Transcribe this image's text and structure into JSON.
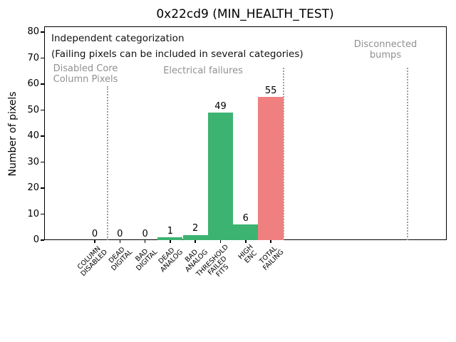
{
  "chart_data": {
    "type": "bar",
    "title": "0x22cd9 (MIN_HEALTH_TEST)",
    "xlabel": "",
    "ylabel": "Number of pixels",
    "ylim": [
      0,
      82
    ],
    "yticks": [
      0,
      10,
      20,
      30,
      40,
      50,
      60,
      70,
      80
    ],
    "grid": false,
    "legend": false,
    "categories": [
      "COLUMN DISABLED",
      "DEAD DIGITAL",
      "BAD DIGITAL",
      "DEAD ANALOG",
      "BAD ANALOG",
      "THRESHOLD FAILED FITS",
      "HIGH ENC",
      "TOTAL FAILING"
    ],
    "category_label_lines": [
      [
        "COLUMN",
        "DISABLED"
      ],
      [
        "DEAD",
        "DIGITAL"
      ],
      [
        "BAD",
        "DIGITAL"
      ],
      [
        "DEAD",
        "ANALOG"
      ],
      [
        "BAD",
        "ANALOG"
      ],
      [
        "THRESHOLD",
        "FAILED",
        "FITS"
      ],
      [
        "HIGH",
        "ENC"
      ],
      [
        "TOTAL",
        "FAILING"
      ]
    ],
    "values": [
      0,
      0,
      0,
      1,
      2,
      49,
      6,
      55
    ],
    "bar_value_labels": [
      "0",
      "0",
      "0",
      "1",
      "2",
      "49",
      "6",
      "55"
    ],
    "bar_colors": [
      "#3cb371",
      "#3cb371",
      "#3cb371",
      "#3cb371",
      "#3cb371",
      "#3cb371",
      "#3cb371",
      "#f08080"
    ],
    "annotations": {
      "line1": "Independent categorization",
      "line2": "(Failing pixels can be included in several categories)"
    },
    "sections": [
      {
        "label_lines": [
          "Disabled Core",
          "Column Pixels"
        ]
      },
      {
        "label_lines": [
          "Electrical failures"
        ]
      },
      {
        "label_lines": [
          "Disconnected",
          "bumps"
        ]
      }
    ],
    "colors": {
      "bar_green": "#3cb371",
      "bar_red": "#f08080",
      "section_text": "#909090",
      "separator": "#9e9e9e"
    }
  }
}
